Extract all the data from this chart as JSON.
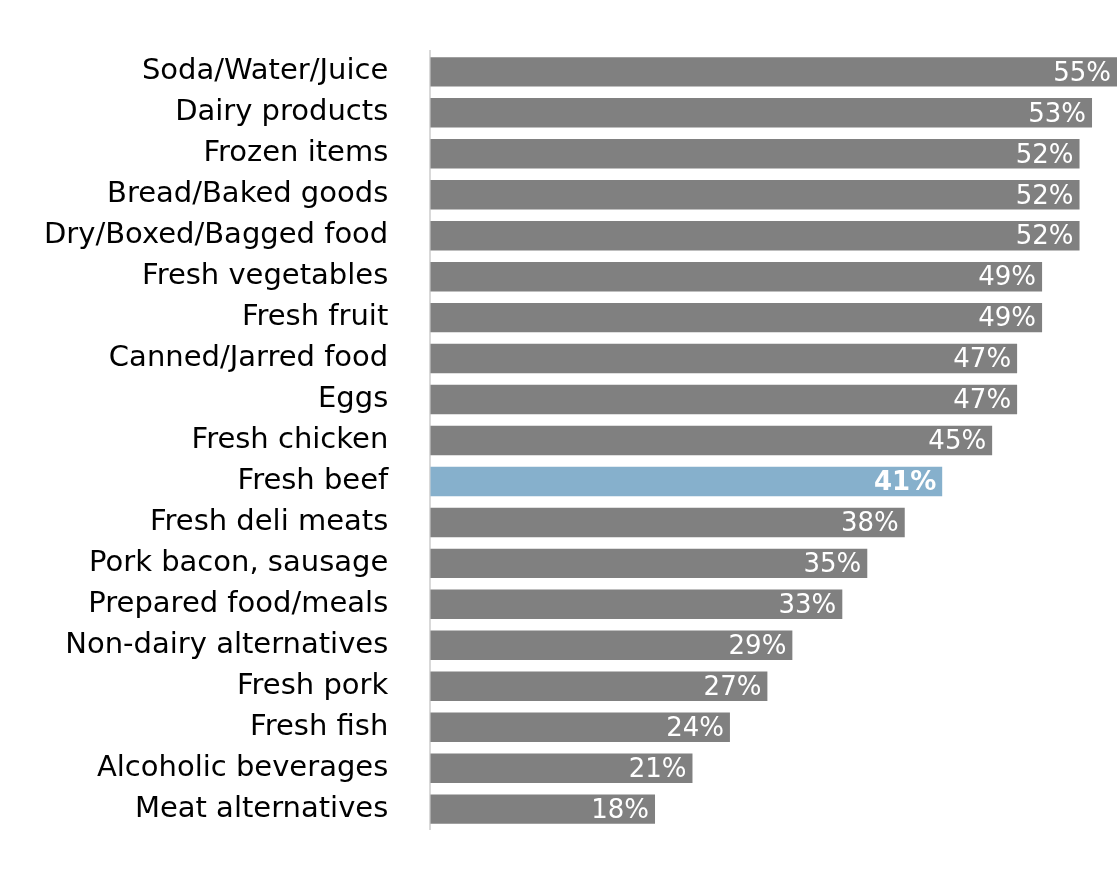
{
  "chart_data": {
    "type": "bar",
    "orientation": "horizontal",
    "categories": [
      "Soda/Water/Juice",
      "Dairy products",
      "Frozen items",
      "Bread/Baked goods",
      "Dry/Boxed/Bagged food",
      "Fresh vegetables",
      "Fresh fruit",
      "Canned/Jarred food",
      "Eggs",
      "Fresh chicken",
      "Fresh beef",
      "Fresh deli meats",
      "Pork bacon, sausage",
      "Prepared food/meals",
      "Non-dairy alternatives",
      "Fresh pork",
      "Fresh fish",
      "Alcoholic beverages",
      "Meat alternatives"
    ],
    "values": [
      55,
      53,
      52,
      52,
      52,
      49,
      49,
      47,
      47,
      45,
      41,
      38,
      35,
      33,
      29,
      27,
      24,
      21,
      18
    ],
    "value_labels": [
      "55%",
      "53%",
      "52%",
      "52%",
      "52%",
      "49%",
      "49%",
      "47%",
      "47%",
      "45%",
      "41%",
      "38%",
      "35%",
      "33%",
      "29%",
      "27%",
      "24%",
      "21%",
      "18%"
    ],
    "colors": [
      "#808080",
      "#808080",
      "#808080",
      "#808080",
      "#808080",
      "#808080",
      "#808080",
      "#808080",
      "#808080",
      "#808080",
      "#86b0cc",
      "#808080",
      "#808080",
      "#808080",
      "#808080",
      "#808080",
      "#808080",
      "#808080",
      "#808080"
    ]
  }
}
